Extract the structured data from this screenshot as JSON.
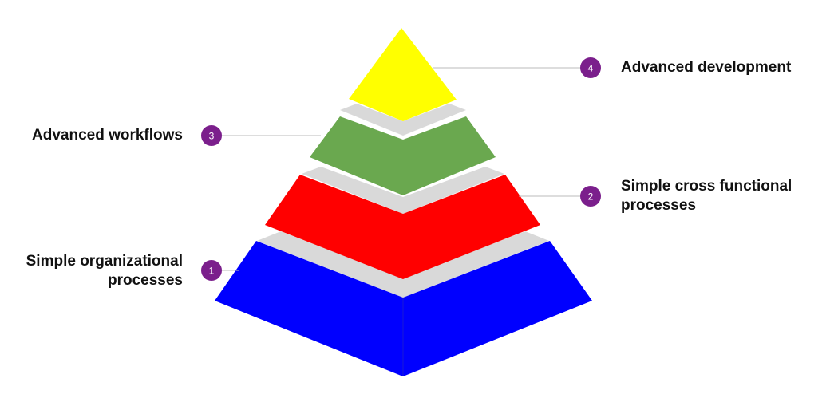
{
  "levels": [
    {
      "number": "1",
      "line1": "Simple organizational",
      "line2": "processes",
      "color": "#0000ff"
    },
    {
      "number": "2",
      "line1": "Simple cross functional",
      "line2": "processes",
      "color": "#ff0000"
    },
    {
      "number": "3",
      "line1": "Advanced workflows",
      "line2": "",
      "color": "#6aa84f"
    },
    {
      "number": "4",
      "line1": "Advanced development",
      "line2": "",
      "color": "#ffff00"
    }
  ],
  "colors": {
    "badge": "#7b1f8c",
    "gap": "#d9d9d9",
    "connector": "#bbbbbb"
  }
}
